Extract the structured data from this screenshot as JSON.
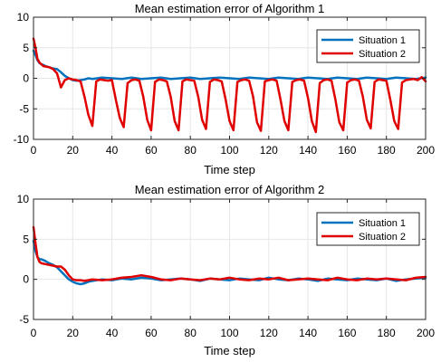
{
  "chart_data": [
    {
      "type": "line",
      "title": "Mean estimation error of Algorithm 1",
      "xlabel": "Time step",
      "ylabel": "",
      "xlim": [
        0,
        200
      ],
      "ylim": [
        -10,
        10
      ],
      "xticks": [
        0,
        20,
        40,
        60,
        80,
        100,
        120,
        140,
        160,
        180,
        200
      ],
      "yticks": [
        10,
        5,
        0,
        -5,
        -10
      ],
      "grid": true,
      "legend_position": "top-right",
      "series": [
        {
          "name": "Situation 1",
          "color": "#0072bd",
          "x": [
            0,
            1,
            2,
            3,
            4,
            5,
            6,
            8,
            10,
            12,
            14,
            16,
            18,
            20,
            22,
            24,
            26,
            28,
            30,
            35,
            40,
            45,
            50,
            55,
            60,
            65,
            70,
            75,
            80,
            85,
            90,
            95,
            100,
            105,
            110,
            115,
            120,
            125,
            130,
            135,
            140,
            145,
            150,
            155,
            160,
            165,
            170,
            175,
            180,
            185,
            190,
            195,
            200
          ],
          "y": [
            4.5,
            3.8,
            3.0,
            2.5,
            2.3,
            2.2,
            2.0,
            1.8,
            1.6,
            1.5,
            1.0,
            0.4,
            0.0,
            -0.3,
            -0.4,
            -0.3,
            -0.2,
            0.0,
            -0.1,
            0.1,
            0.0,
            -0.1,
            0.1,
            -0.1,
            0.0,
            0.1,
            -0.1,
            0.0,
            0.1,
            -0.1,
            0.0,
            0.1,
            0.0,
            -0.1,
            0.1,
            0.0,
            -0.1,
            0.1,
            0.0,
            -0.1,
            0.1,
            0.0,
            -0.1,
            0.1,
            0.0,
            -0.1,
            0.1,
            0.0,
            -0.1,
            0.1,
            0.0,
            -0.1,
            0.1
          ]
        },
        {
          "name": "Situation 2",
          "color": "#e00000",
          "x": [
            0,
            1,
            2,
            3,
            4,
            5,
            8,
            10,
            12,
            14,
            16,
            18,
            20,
            22,
            24,
            26,
            28,
            30,
            32,
            34,
            36,
            38,
            40,
            42,
            44,
            46,
            48,
            50,
            52,
            54,
            56,
            58,
            60,
            62,
            64,
            66,
            68,
            70,
            72,
            74,
            76,
            78,
            80,
            82,
            84,
            86,
            88,
            90,
            92,
            94,
            96,
            98,
            100,
            102,
            104,
            106,
            108,
            110,
            112,
            114,
            116,
            118,
            120,
            122,
            124,
            126,
            128,
            130,
            132,
            134,
            136,
            138,
            140,
            142,
            144,
            146,
            148,
            150,
            152,
            154,
            156,
            158,
            160,
            162,
            164,
            166,
            168,
            170,
            172,
            174,
            176,
            178,
            180,
            182,
            184,
            186,
            188,
            190,
            192,
            194,
            196,
            198,
            200
          ],
          "y": [
            6.5,
            5.0,
            3.2,
            2.6,
            2.3,
            2.0,
            1.8,
            1.5,
            0.8,
            -1.5,
            -0.3,
            0.0,
            -0.2,
            -0.3,
            -0.5,
            -3.0,
            -6.0,
            -7.8,
            -0.5,
            -0.2,
            -0.3,
            -0.4,
            -0.3,
            -3.5,
            -6.5,
            -8.0,
            -0.8,
            -0.3,
            -0.2,
            -0.4,
            -3.0,
            -6.8,
            -8.5,
            -0.6,
            -0.2,
            -0.3,
            -0.5,
            -3.0,
            -7.0,
            -8.5,
            -0.5,
            -0.2,
            -0.3,
            -0.4,
            -3.0,
            -6.8,
            -8.3,
            -0.6,
            -0.2,
            -0.3,
            -0.5,
            -3.5,
            -7.0,
            -8.5,
            -0.6,
            -0.3,
            -0.2,
            -0.4,
            -3.0,
            -7.2,
            -8.6,
            -0.5,
            -0.3,
            -0.2,
            -0.4,
            -3.5,
            -7.0,
            -8.5,
            -0.6,
            -0.3,
            -0.2,
            -0.4,
            -3.2,
            -7.0,
            -8.8,
            -0.8,
            -0.3,
            -0.2,
            -0.4,
            -3.5,
            -7.2,
            -8.5,
            -0.7,
            -0.3,
            -0.2,
            -0.4,
            -3.0,
            -6.8,
            -8.2,
            -0.6,
            -0.2,
            -0.3,
            -0.4,
            -3.5,
            -7.0,
            -8.3,
            -0.7,
            -0.3,
            -0.2,
            -0.1,
            -0.3,
            0.2,
            -0.5
          ]
        }
      ]
    },
    {
      "type": "line",
      "title": "Mean estimation error of Algorithm 2",
      "xlabel": "Time step",
      "ylabel": "",
      "xlim": [
        0,
        200
      ],
      "ylim": [
        -5,
        10
      ],
      "xticks": [
        0,
        20,
        40,
        60,
        80,
        100,
        120,
        140,
        160,
        180,
        200
      ],
      "yticks": [
        10,
        5,
        0,
        -5
      ],
      "grid": true,
      "legend_position": "top-right",
      "series": [
        {
          "name": "Situation 1",
          "color": "#0072bd",
          "x": [
            0,
            1,
            2,
            3,
            4,
            6,
            8,
            10,
            12,
            14,
            16,
            18,
            20,
            22,
            24,
            26,
            28,
            30,
            35,
            40,
            45,
            50,
            55,
            60,
            65,
            70,
            75,
            80,
            85,
            90,
            95,
            100,
            105,
            110,
            115,
            120,
            125,
            130,
            135,
            140,
            145,
            150,
            155,
            160,
            165,
            170,
            175,
            180,
            185,
            190,
            195,
            200
          ],
          "y": [
            4.8,
            3.5,
            2.8,
            2.5,
            2.5,
            2.3,
            2.0,
            1.8,
            1.5,
            1.0,
            0.5,
            0.0,
            -0.3,
            -0.5,
            -0.6,
            -0.5,
            -0.3,
            -0.2,
            0.0,
            -0.1,
            0.1,
            0.0,
            0.2,
            0.1,
            -0.1,
            0.0,
            0.1,
            0.0,
            -0.2,
            0.1,
            0.0,
            -0.1,
            0.1,
            0.0,
            -0.1,
            0.2,
            0.0,
            -0.1,
            0.1,
            0.0,
            -0.2,
            0.1,
            0.0,
            -0.1,
            0.1,
            0.0,
            -0.1,
            0.1,
            -0.2,
            0.0,
            0.1,
            0.2
          ]
        },
        {
          "name": "Situation 2",
          "color": "#e00000",
          "x": [
            0,
            1,
            2,
            3,
            4,
            6,
            8,
            10,
            12,
            14,
            16,
            18,
            20,
            22,
            24,
            26,
            28,
            30,
            35,
            40,
            45,
            50,
            55,
            60,
            65,
            70,
            75,
            80,
            85,
            90,
            95,
            100,
            105,
            110,
            115,
            120,
            125,
            130,
            135,
            140,
            145,
            150,
            155,
            160,
            165,
            170,
            175,
            180,
            185,
            190,
            195,
            200
          ],
          "y": [
            6.5,
            4.5,
            2.8,
            2.2,
            2.0,
            1.9,
            1.8,
            1.7,
            1.6,
            1.6,
            1.2,
            0.5,
            0.0,
            -0.1,
            -0.1,
            -0.2,
            -0.1,
            0.0,
            -0.1,
            0.0,
            0.2,
            0.3,
            0.5,
            0.3,
            0.0,
            -0.1,
            0.1,
            0.0,
            -0.1,
            0.1,
            0.0,
            0.2,
            0.0,
            -0.1,
            0.1,
            0.0,
            0.2,
            -0.1,
            0.0,
            0.1,
            0.0,
            -0.1,
            0.2,
            0.0,
            -0.1,
            0.1,
            0.0,
            0.1,
            0.0,
            -0.1,
            0.2,
            0.3
          ]
        }
      ]
    }
  ]
}
